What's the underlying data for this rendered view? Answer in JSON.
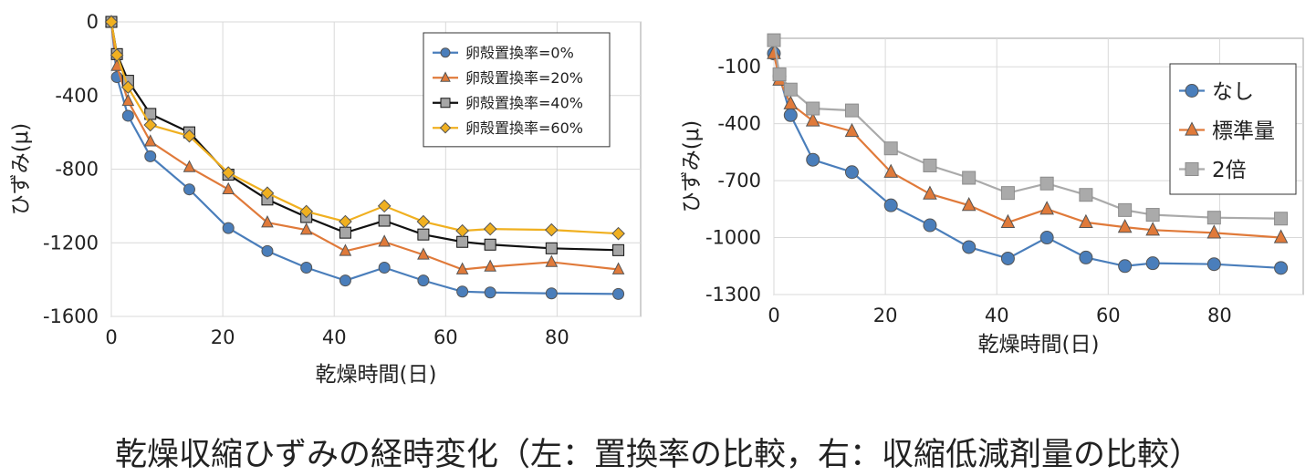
{
  "caption": "乾燥収縮ひずみの経時変化（左：置換率の比較，右：収縮低減剤量の比較）",
  "chart_data": [
    {
      "type": "line",
      "title": "",
      "xlabel": "乾燥時間(日)",
      "ylabel": "ひずみ(μ)",
      "xlim": [
        0,
        95
      ],
      "ylim": [
        -1600,
        0
      ],
      "xticks": [
        0,
        20,
        40,
        60,
        80
      ],
      "xtick_labels": [
        "0",
        "20",
        "40",
        "60",
        "80"
      ],
      "yticks": [
        0,
        -400,
        -800,
        -1200,
        -1600
      ],
      "ytick_labels": [
        "0",
        "-400",
        "-800",
        "-1200",
        "-1600"
      ],
      "grid": true,
      "legend_position": "top-right",
      "series": [
        {
          "name": "卵殻置換率=0%",
          "color": "#4a7ebb",
          "marker": "circle",
          "x": [
            0,
            1,
            3,
            7,
            14,
            21,
            28,
            35,
            42,
            49,
            56,
            63,
            68,
            79,
            91
          ],
          "y": [
            0,
            -300,
            -510,
            -730,
            -910,
            -1120,
            -1245,
            -1335,
            -1405,
            -1335,
            -1405,
            -1465,
            -1470,
            -1475,
            -1478
          ]
        },
        {
          "name": "卵殻置換率=20%",
          "color": "#e07a3a",
          "marker": "triangle",
          "x": [
            0,
            1,
            3,
            7,
            14,
            21,
            28,
            35,
            42,
            49,
            56,
            63,
            68,
            79,
            91
          ],
          "y": [
            0,
            -240,
            -430,
            -650,
            -790,
            -910,
            -1090,
            -1130,
            -1245,
            -1195,
            -1265,
            -1345,
            -1330,
            -1305,
            -1345
          ]
        },
        {
          "name": "卵殻置換率=40%",
          "color": "#111111",
          "marker": "square",
          "x": [
            0,
            1,
            3,
            7,
            14,
            21,
            28,
            35,
            42,
            49,
            56,
            63,
            68,
            79,
            91
          ],
          "y": [
            0,
            -175,
            -320,
            -500,
            -600,
            -830,
            -965,
            -1060,
            -1145,
            -1080,
            -1155,
            -1195,
            -1210,
            -1230,
            -1240
          ]
        },
        {
          "name": "卵殻置換率=60%",
          "color": "#f0b020",
          "marker": "diamond",
          "x": [
            0,
            1,
            3,
            7,
            14,
            21,
            28,
            35,
            42,
            49,
            56,
            63,
            68,
            79,
            91
          ],
          "y": [
            0,
            -180,
            -355,
            -560,
            -620,
            -820,
            -930,
            -1030,
            -1085,
            -1000,
            -1085,
            -1135,
            -1125,
            -1130,
            -1150
          ]
        }
      ]
    },
    {
      "type": "line",
      "title": "",
      "xlabel": "乾燥時間(日)",
      "ylabel": "ひずみ(μ)",
      "xlim": [
        0,
        95
      ],
      "ylim": [
        -1300,
        50
      ],
      "xticks": [
        0,
        20,
        40,
        60,
        80
      ],
      "xtick_labels": [
        "0",
        "20",
        "40",
        "60",
        "80"
      ],
      "yticks": [
        -100,
        -400,
        -700,
        -1000,
        -1300
      ],
      "ytick_labels": [
        "-100",
        "-400",
        "-700",
        "-1000",
        "-1300"
      ],
      "grid": true,
      "legend_position": "top-right",
      "series": [
        {
          "name": "なし",
          "color": "#4a7ebb",
          "marker": "circle",
          "x": [
            0,
            1,
            3,
            7,
            14,
            21,
            28,
            35,
            42,
            49,
            56,
            63,
            68,
            79,
            91
          ],
          "y": [
            -30,
            -150,
            -355,
            -590,
            -655,
            -830,
            -935,
            -1050,
            -1110,
            -1000,
            -1105,
            -1150,
            -1135,
            -1140,
            -1160
          ]
        },
        {
          "name": "標準量",
          "color": "#e07a3a",
          "marker": "triangle",
          "x": [
            0,
            1,
            3,
            7,
            14,
            21,
            28,
            35,
            42,
            49,
            56,
            63,
            68,
            79,
            91
          ],
          "y": [
            -30,
            -170,
            -295,
            -385,
            -440,
            -655,
            -770,
            -830,
            -920,
            -850,
            -920,
            -945,
            -960,
            -975,
            -1000
          ]
        },
        {
          "name": "2倍",
          "color": "#aaaaaa",
          "marker": "square",
          "x": [
            0,
            1,
            3,
            7,
            14,
            21,
            28,
            35,
            42,
            49,
            56,
            63,
            68,
            79,
            91
          ],
          "y": [
            40,
            -140,
            -220,
            -320,
            -330,
            -530,
            -620,
            -685,
            -765,
            -715,
            -775,
            -855,
            -880,
            -895,
            -900
          ]
        }
      ]
    }
  ]
}
